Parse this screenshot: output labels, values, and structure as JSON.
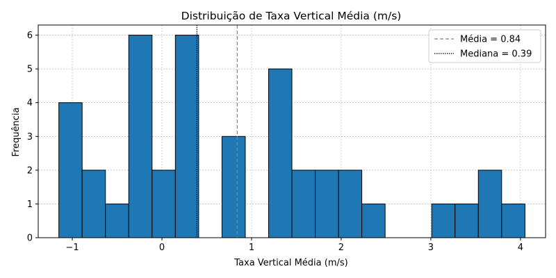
{
  "chart_data": {
    "type": "bar",
    "title": "Distribuição de Taxa Vertical Média (m/s)",
    "xlabel": "Taxa Vertical Média (m/s)",
    "ylabel": "Frequência",
    "xlim": [
      -1.38,
      4.28
    ],
    "ylim": [
      0,
      6.3
    ],
    "xticks": [
      -1,
      0,
      1,
      2,
      3,
      4
    ],
    "xtick_labels": [
      "−1",
      "0",
      "1",
      "2",
      "3",
      "4"
    ],
    "yticks": [
      0,
      1,
      2,
      3,
      4,
      5,
      6
    ],
    "ytick_labels": [
      "0",
      "1",
      "2",
      "3",
      "4",
      "5",
      "6"
    ],
    "grid": true,
    "legend_position": "top-right",
    "bin_edges": [
      -1.15,
      -0.89,
      -0.63,
      -0.37,
      -0.11,
      0.15,
      0.41,
      0.67,
      0.93,
      1.19,
      1.45,
      1.71,
      1.97,
      2.23,
      2.49,
      2.75,
      3.01,
      3.27,
      3.53,
      3.79,
      4.05
    ],
    "values": [
      4,
      2,
      1,
      6,
      2,
      6,
      0,
      3,
      0,
      5,
      2,
      2,
      2,
      1,
      0,
      0,
      1,
      1,
      2,
      1
    ],
    "bar_color": "#1f77b4",
    "reference_lines": [
      {
        "label": "Média = 0.84",
        "value": 0.84,
        "style": "dashed",
        "color": "#808080"
      },
      {
        "label": "Mediana = 0.39",
        "value": 0.39,
        "style": "dotted",
        "color": "#000000"
      }
    ]
  }
}
